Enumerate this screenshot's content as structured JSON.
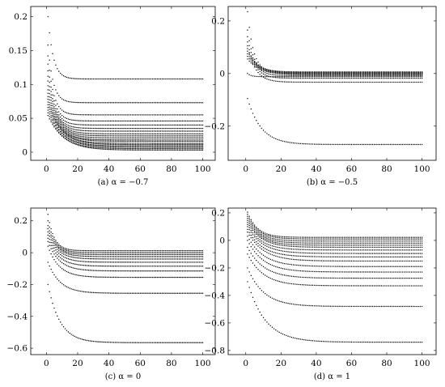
{
  "chart_data": [
    {
      "type": "scatter",
      "caption": "(a) α = −0.7",
      "xlim": [
        -10,
        108
      ],
      "ylim": [
        -0.012,
        0.215
      ],
      "xticks": [
        0,
        20,
        40,
        60,
        80,
        100
      ],
      "xtick_labels": [
        "0",
        "20",
        "40",
        "60",
        "80",
        "100"
      ],
      "yticks": [
        0,
        0.05,
        0.1,
        0.15,
        0.2
      ],
      "ytick_labels": [
        "0",
        "0.05",
        "0.1",
        "0.15",
        "0.2"
      ],
      "n_points": 100,
      "series": [
        {
          "start": 0.2,
          "limit": 0.108,
          "k": 0.3
        },
        {
          "start": 0.158,
          "limit": 0.073,
          "k": 0.3
        },
        {
          "start": 0.142,
          "limit": 0.055,
          "k": 0.28
        },
        {
          "start": 0.13,
          "limit": 0.046,
          "k": 0.26
        },
        {
          "start": 0.12,
          "limit": 0.04,
          "k": 0.24
        },
        {
          "start": 0.112,
          "limit": 0.035,
          "k": 0.22
        },
        {
          "start": 0.105,
          "limit": 0.031,
          "k": 0.2
        },
        {
          "start": 0.098,
          "limit": 0.027,
          "k": 0.18
        },
        {
          "start": 0.092,
          "limit": 0.024,
          "k": 0.17
        },
        {
          "start": 0.087,
          "limit": 0.021,
          "k": 0.16
        },
        {
          "start": 0.082,
          "limit": 0.018,
          "k": 0.15
        },
        {
          "start": 0.078,
          "limit": 0.016,
          "k": 0.14
        },
        {
          "start": 0.074,
          "limit": 0.013,
          "k": 0.13
        },
        {
          "start": 0.07,
          "limit": 0.011,
          "k": 0.12
        },
        {
          "start": 0.066,
          "limit": 0.009,
          "k": 0.12
        },
        {
          "start": 0.062,
          "limit": 0.007,
          "k": 0.11
        },
        {
          "start": 0.058,
          "limit": 0.005,
          "k": 0.11
        },
        {
          "start": 0.054,
          "limit": 0.003,
          "k": 0.1
        }
      ]
    },
    {
      "type": "scatter",
      "caption": "(b) α = −0.5",
      "xlim": [
        -10,
        108
      ],
      "ylim": [
        -0.33,
        0.255
      ],
      "xticks": [
        0,
        20,
        40,
        60,
        80,
        100
      ],
      "xtick_labels": [
        "0",
        "20",
        "40",
        "60",
        "80",
        "100"
      ],
      "yticks": [
        -0.2,
        0,
        0.2
      ],
      "ytick_labels": [
        "−0.2",
        "0",
        "0.2"
      ],
      "n_points": 100,
      "series": [
        {
          "start": 0.235,
          "limit": 0.005,
          "k": 0.3
        },
        {
          "start": 0.165,
          "limit": 0.0,
          "k": 0.28
        },
        {
          "start": 0.14,
          "limit": -0.008,
          "k": 0.26
        },
        {
          "start": 0.12,
          "limit": -0.018,
          "k": 0.24
        },
        {
          "start": 0.105,
          "limit": -0.033,
          "k": 0.22
        },
        {
          "start": 0.095,
          "limit": 0.006,
          "k": 0.2
        },
        {
          "start": 0.085,
          "limit": 0.003,
          "k": 0.18
        },
        {
          "start": 0.075,
          "limit": 0.001,
          "k": 0.16
        },
        {
          "start": 0.065,
          "limit": -0.002,
          "k": 0.15
        },
        {
          "start": 0.055,
          "limit": -0.005,
          "k": 0.14
        },
        {
          "start": 0.0,
          "limit": -0.012,
          "k": 0.5
        },
        {
          "start": -0.095,
          "limit": -0.27,
          "k": 0.13
        }
      ]
    },
    {
      "type": "scatter",
      "caption": "(c) α = 0",
      "xlim": [
        -10,
        108
      ],
      "ylim": [
        -0.64,
        0.28
      ],
      "xticks": [
        0,
        20,
        40,
        60,
        80,
        100
      ],
      "xtick_labels": [
        "0",
        "20",
        "40",
        "60",
        "80",
        "100"
      ],
      "yticks": [
        -0.6,
        -0.4,
        -0.2,
        0,
        0.2
      ],
      "ytick_labels": [
        "−0.6",
        "−0.4",
        "−0.2",
        "0",
        "0.2"
      ],
      "n_points": 100,
      "series": [
        {
          "start": 0.24,
          "limit": 0.012,
          "k": 0.25
        },
        {
          "start": 0.2,
          "limit": 0.0,
          "k": 0.22
        },
        {
          "start": 0.17,
          "limit": -0.012,
          "k": 0.2
        },
        {
          "start": 0.15,
          "limit": -0.025,
          "k": 0.18
        },
        {
          "start": 0.13,
          "limit": -0.04,
          "k": 0.17
        },
        {
          "start": 0.11,
          "limit": -0.06,
          "k": 0.16
        },
        {
          "start": 0.09,
          "limit": -0.085,
          "k": 0.15
        },
        {
          "start": 0.07,
          "limit": -0.115,
          "k": 0.14
        },
        {
          "start": 0.04,
          "limit": -0.155,
          "k": 0.14
        },
        {
          "start": -0.06,
          "limit": -0.255,
          "k": 0.13
        },
        {
          "start": -0.2,
          "limit": -0.565,
          "k": 0.13
        }
      ]
    },
    {
      "type": "scatter",
      "caption": "(d) α = 1",
      "xlim": [
        -10,
        108
      ],
      "ylim": [
        -0.83,
        0.235
      ],
      "xticks": [
        0,
        20,
        40,
        60,
        80,
        100
      ],
      "xtick_labels": [
        "0",
        "20",
        "40",
        "60",
        "80",
        "100"
      ],
      "yticks": [
        -0.8,
        -0.6,
        -0.4,
        -0.2,
        0,
        0.2
      ],
      "ytick_labels": [
        "−0.8",
        "−0.6",
        "−0.4",
        "−0.2",
        "0",
        "0.2"
      ],
      "n_points": 100,
      "series": [
        {
          "start": 0.205,
          "limit": 0.022,
          "k": 0.18
        },
        {
          "start": 0.19,
          "limit": 0.01,
          "k": 0.17
        },
        {
          "start": 0.175,
          "limit": -0.005,
          "k": 0.16
        },
        {
          "start": 0.16,
          "limit": -0.02,
          "k": 0.15
        },
        {
          "start": 0.145,
          "limit": -0.035,
          "k": 0.14
        },
        {
          "start": 0.13,
          "limit": -0.05,
          "k": 0.13
        },
        {
          "start": 0.115,
          "limit": -0.07,
          "k": 0.13
        },
        {
          "start": 0.1,
          "limit": -0.095,
          "k": 0.12
        },
        {
          "start": 0.08,
          "limit": -0.12,
          "k": 0.12
        },
        {
          "start": 0.06,
          "limit": -0.15,
          "k": 0.11
        },
        {
          "start": 0.03,
          "limit": -0.19,
          "k": 0.11
        },
        {
          "start": 0.0,
          "limit": -0.23,
          "k": 0.11
        },
        {
          "start": -0.05,
          "limit": -0.275,
          "k": 0.11
        },
        {
          "start": -0.1,
          "limit": -0.33,
          "k": 0.11
        },
        {
          "start": -0.2,
          "limit": -0.48,
          "k": 0.11
        },
        {
          "start": -0.3,
          "limit": -0.74,
          "k": 0.1
        }
      ]
    }
  ]
}
